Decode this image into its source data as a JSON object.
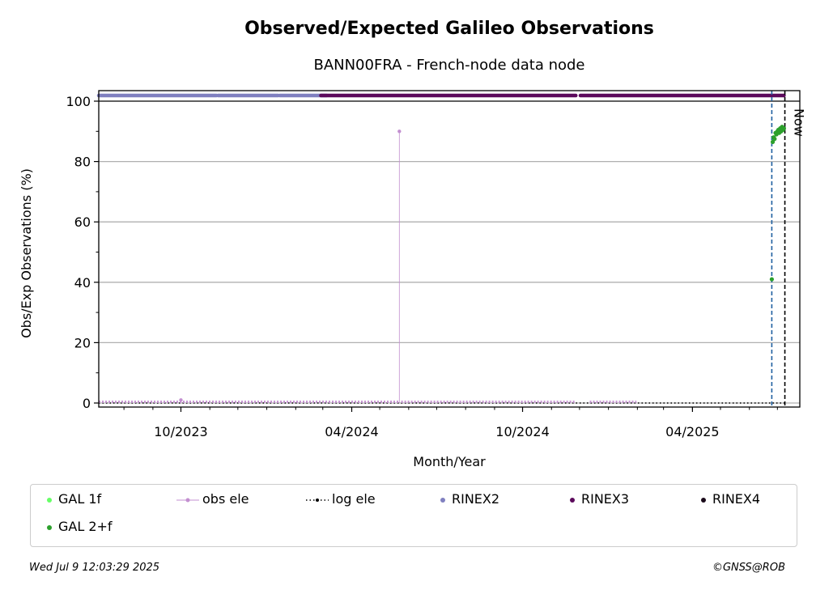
{
  "chart_data": {
    "type": "line",
    "title": "Observed/Expected Galileo Observations",
    "subtitle": "BANN00FRA - French-node data node",
    "xlabel": "Month/Year",
    "ylabel": "Obs/Exp Observations (%)",
    "ylim": [
      0,
      100
    ],
    "yticks": [
      0,
      20,
      40,
      60,
      80,
      100
    ],
    "xlim": [
      "2023-07-05",
      "2025-07-25"
    ],
    "xticks": [
      {
        "date": "2023-10-01",
        "label": "10/2023"
      },
      {
        "date": "2024-04-01",
        "label": "04/2024"
      },
      {
        "date": "2024-10-01",
        "label": "10/2024"
      },
      {
        "date": "2025-04-01",
        "label": "04/2025"
      }
    ],
    "grid": "horizontal",
    "now_marker": {
      "date": "2025-07-09",
      "label": "Now"
    },
    "reference_line_date": "2025-06-25",
    "series": [
      {
        "name": "obs ele",
        "color": "#c38fd0",
        "segments": [
          {
            "from": "2023-07-05",
            "to": "2024-05-21",
            "value": 0
          },
          {
            "from": "2024-05-24",
            "to": "2024-11-27",
            "value": 0
          },
          {
            "from": "2024-12-12",
            "to": "2025-01-31",
            "value": 0
          }
        ],
        "spikes": [
          {
            "date": "2024-05-22",
            "value": 90
          },
          {
            "date": "2023-10-01",
            "value": 1
          }
        ]
      },
      {
        "name": "log ele",
        "color": "#000000",
        "segments": [
          {
            "from": "2023-07-05",
            "to": "2025-07-09",
            "value": 0
          }
        ]
      },
      {
        "name": "GAL 2+f",
        "color": "#2ca02c",
        "points": [
          {
            "date": "2025-06-25",
            "value": 41
          },
          {
            "date": "2025-06-26",
            "value": 86.5
          },
          {
            "date": "2025-06-27",
            "value": 88
          },
          {
            "date": "2025-06-28",
            "value": 87.5
          },
          {
            "date": "2025-06-29",
            "value": 89.5
          },
          {
            "date": "2025-06-30",
            "value": 89
          },
          {
            "date": "2025-07-01",
            "value": 90
          },
          {
            "date": "2025-07-02",
            "value": 90.5
          },
          {
            "date": "2025-07-03",
            "value": 89.5
          },
          {
            "date": "2025-07-04",
            "value": 91
          },
          {
            "date": "2025-07-05",
            "value": 90
          },
          {
            "date": "2025-07-06",
            "value": 91.5
          },
          {
            "date": "2025-07-07",
            "value": 90.5
          },
          {
            "date": "2025-07-08",
            "value": 91
          }
        ]
      },
      {
        "name": "GAL 1f",
        "color": "#66ff66",
        "points": []
      }
    ],
    "rinex_bars": [
      {
        "name": "RINEX2",
        "color": "#8080c0",
        "segments": [
          {
            "from": "2023-07-05",
            "to": "2023-11-08"
          },
          {
            "from": "2023-11-10",
            "to": "2024-01-13"
          },
          {
            "from": "2024-01-15",
            "to": "2024-03-05"
          }
        ]
      },
      {
        "name": "RINEX3",
        "color": "#5c0a5c",
        "segments": [
          {
            "from": "2024-02-28",
            "to": "2024-11-27"
          },
          {
            "from": "2024-12-02",
            "to": "2025-07-08"
          }
        ]
      },
      {
        "name": "RINEX4",
        "color": "#1a0a1a",
        "segments": []
      }
    ],
    "legend": [
      {
        "name": "GAL 1f",
        "marker": "dot",
        "color": "#66ff66"
      },
      {
        "name": "obs ele",
        "marker": "line-dot",
        "color": "#c38fd0"
      },
      {
        "name": "log ele",
        "marker": "dotted-line",
        "color": "#000000"
      },
      {
        "name": "RINEX2",
        "marker": "dot",
        "color": "#8080c0"
      },
      {
        "name": "RINEX3",
        "marker": "dot",
        "color": "#5c0a5c"
      },
      {
        "name": "RINEX4",
        "marker": "dot",
        "color": "#1a0a1a"
      },
      {
        "name": "GAL 2+f",
        "marker": "dot",
        "color": "#2ca02c"
      }
    ],
    "legend_position": "bottom"
  },
  "footer": {
    "timestamp": "Wed Jul  9 12:03:29 2025",
    "credit": "©GNSS@ROB"
  }
}
